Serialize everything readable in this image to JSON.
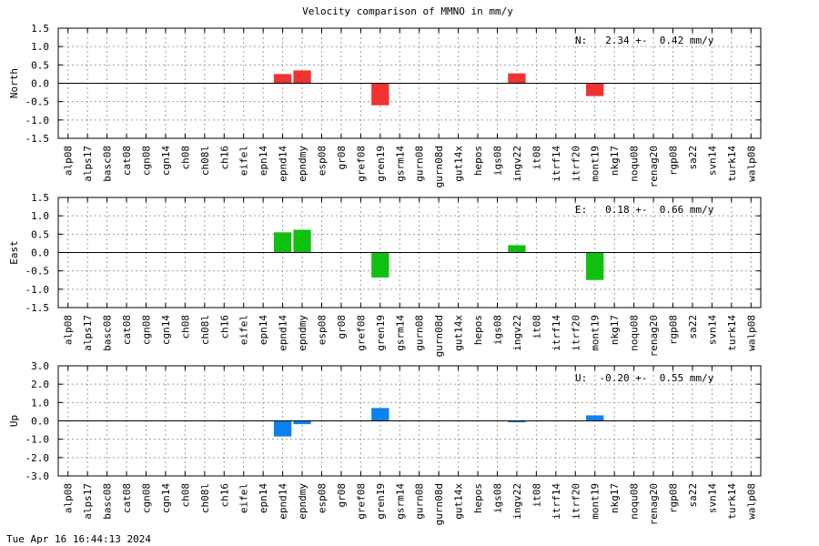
{
  "chart_data": [
    {
      "type": "bar",
      "title": "Velocity comparison of MMNO in mm/y",
      "ylabel": "North",
      "ylim": [
        -1.5,
        1.5
      ],
      "yticks": [
        "1.5",
        "1.0",
        "0.5",
        "0.0",
        "-0.5",
        "-1.0",
        "-1.5"
      ],
      "grid": true,
      "color": "#f03232",
      "annotation": "N:   2.34 +-  0.42 mm/y",
      "categories": [
        "alp08",
        "alps17",
        "basc08",
        "cat08",
        "cgn08",
        "cgn14",
        "ch08",
        "ch08l",
        "ch16",
        "eifel",
        "epn14",
        "epnd14",
        "epndmy",
        "esp08",
        "gr08",
        "gref08",
        "gren19",
        "gsrm14",
        "gurn08",
        "gurn08d",
        "gut14x",
        "hepos",
        "igs08",
        "ingv22",
        "it08",
        "itrf14",
        "itrf20",
        "mont19",
        "nkg17",
        "noqu08",
        "renag20",
        "rgp08",
        "sa22",
        "svn14",
        "turk14",
        "walp08"
      ],
      "values": [
        null,
        null,
        null,
        null,
        null,
        null,
        null,
        null,
        null,
        null,
        null,
        0.25,
        0.35,
        null,
        null,
        null,
        -0.6,
        null,
        null,
        null,
        null,
        null,
        null,
        0.27,
        null,
        null,
        null,
        -0.35,
        null,
        null,
        null,
        null,
        null,
        null,
        null,
        null
      ]
    },
    {
      "type": "bar",
      "title": "",
      "ylabel": "East",
      "ylim": [
        -1.5,
        1.5
      ],
      "yticks": [
        "1.5",
        "1.0",
        "0.5",
        "0.0",
        "-0.5",
        "-1.0",
        "-1.5"
      ],
      "grid": true,
      "color": "#10c010",
      "annotation": "E:   0.18 +-  0.66 mm/y",
      "categories": [
        "alp08",
        "alps17",
        "basc08",
        "cat08",
        "cgn08",
        "cgn14",
        "ch08",
        "ch08l",
        "ch16",
        "eifel",
        "epn14",
        "epnd14",
        "epndmy",
        "esp08",
        "gr08",
        "gref08",
        "gren19",
        "gsrm14",
        "gurn08",
        "gurn08d",
        "gut14x",
        "hepos",
        "igs08",
        "ingv22",
        "it08",
        "itrf14",
        "itrf20",
        "mont19",
        "nkg17",
        "noqu08",
        "renag20",
        "rgp08",
        "sa22",
        "svn14",
        "turk14",
        "walp08"
      ],
      "values": [
        null,
        null,
        null,
        null,
        null,
        null,
        null,
        null,
        null,
        null,
        null,
        0.55,
        0.62,
        null,
        null,
        null,
        -0.68,
        null,
        null,
        null,
        null,
        null,
        null,
        0.2,
        null,
        null,
        null,
        -0.75,
        null,
        null,
        null,
        null,
        null,
        null,
        null,
        null
      ]
    },
    {
      "type": "bar",
      "title": "",
      "ylabel": "Up",
      "ylim": [
        -3.0,
        3.0
      ],
      "yticks": [
        "3.0",
        "2.0",
        "1.0",
        "0.0",
        "-1.0",
        "-2.0",
        "-3.0"
      ],
      "grid": true,
      "color": "#0a82f0",
      "annotation": "U:  -0.20 +-  0.55 mm/y",
      "categories": [
        "alp08",
        "alps17",
        "basc08",
        "cat08",
        "cgn08",
        "cgn14",
        "ch08",
        "ch08l",
        "ch16",
        "eifel",
        "epn14",
        "epnd14",
        "epndmy",
        "esp08",
        "gr08",
        "gref08",
        "gren19",
        "gsrm14",
        "gurn08",
        "gurn08d",
        "gut14x",
        "hepos",
        "igs08",
        "ingv22",
        "it08",
        "itrf14",
        "itrf20",
        "mont19",
        "nkg17",
        "noqu08",
        "renag20",
        "rgp08",
        "sa22",
        "svn14",
        "turk14",
        "walp08"
      ],
      "values": [
        null,
        null,
        null,
        null,
        null,
        null,
        null,
        null,
        null,
        null,
        null,
        -0.85,
        -0.18,
        null,
        null,
        null,
        0.7,
        null,
        null,
        null,
        null,
        null,
        null,
        -0.08,
        null,
        null,
        null,
        0.3,
        null,
        null,
        null,
        null,
        null,
        null,
        null,
        null
      ]
    }
  ],
  "footer": {
    "timestamp": "Tue Apr 16 16:44:13 2024"
  }
}
